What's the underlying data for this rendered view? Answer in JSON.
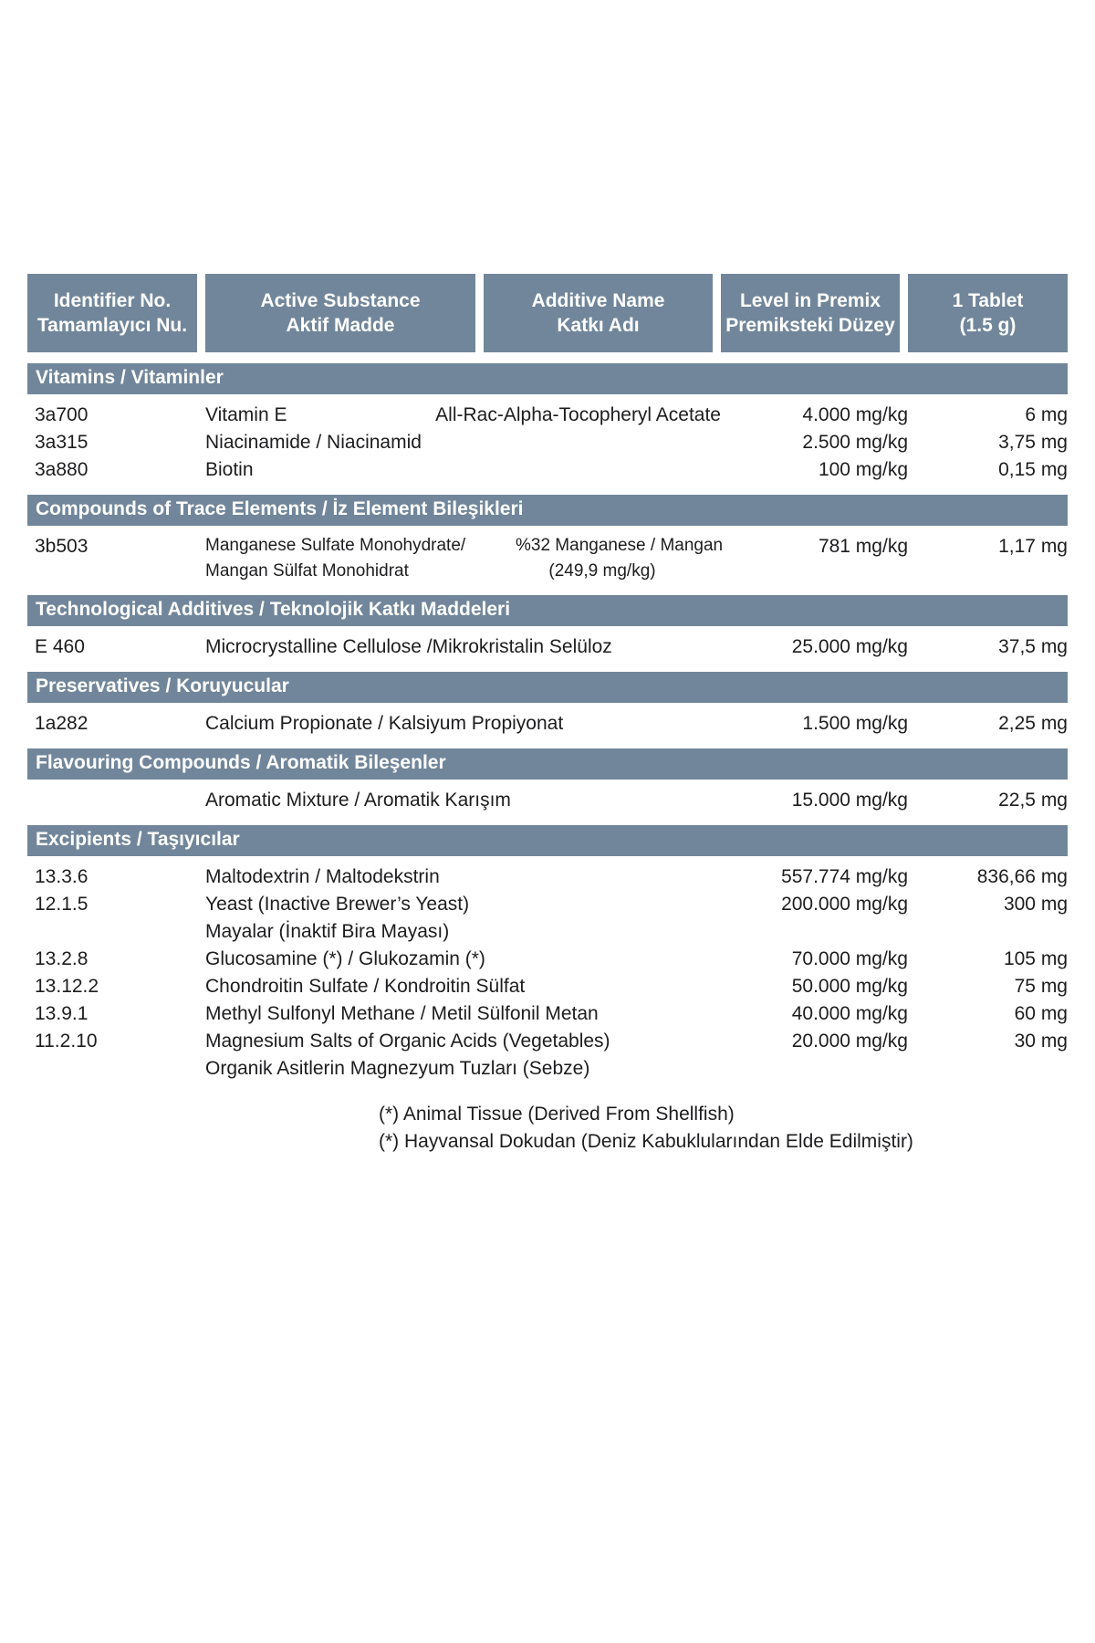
{
  "page": {
    "background": "#FFFFFF",
    "accent_color": "#71869A",
    "header_text_color": "#FFFFFF",
    "body_text_color": "#1D1D1F"
  },
  "header": {
    "columns": [
      {
        "line1": "Identifier No.",
        "line2": "Tamamlayıcı Nu."
      },
      {
        "line1": "Active Substance",
        "line2": "Aktif Madde"
      },
      {
        "line1": "Additive Name",
        "line2": "Katkı Adı"
      },
      {
        "line1": "Level in Premix",
        "line2": "Premiksteki Düzey"
      },
      {
        "line1": "1 Tablet",
        "line2": "(1.5 g)"
      }
    ]
  },
  "sections": [
    {
      "title": "Vitamins / Vitaminler",
      "rows": [
        {
          "id": "3a700",
          "active": "Vitamin E",
          "additive": "All-Rac-Alpha-Tocopheryl Acetate",
          "level": "4.000 mg/kg",
          "tablet": "6 mg"
        },
        {
          "id": "3a315",
          "active": "Niacinamide / Niacinamid",
          "additive": "",
          "level": "2.500 mg/kg",
          "tablet": "3,75 mg"
        },
        {
          "id": "3a880",
          "active": "Biotin",
          "additive": "",
          "level": "100 mg/kg",
          "tablet": "0,15 mg"
        }
      ]
    },
    {
      "title": "Compounds of Trace Elements / İz Element Bileşikleri",
      "rows": [
        {
          "id": "3b503",
          "active": "Manganese Sulfate Monohydrate/",
          "active2": "Mangan Sülfat Monohidrat",
          "additive": "%32 Manganese / Mangan",
          "additive2": "(249,9 mg/kg)",
          "level": "781 mg/kg",
          "tablet": "1,17 mg"
        }
      ]
    },
    {
      "title": "Technological Additives / Teknolojik Katkı Maddeleri",
      "rows": [
        {
          "id": "E 460",
          "active": "Microcrystalline Cellulose /Mikrokristalin Selüloz",
          "additive": "",
          "level": "25.000 mg/kg",
          "tablet": "37,5 mg"
        }
      ]
    },
    {
      "title": "Preservatives / Koruyucular",
      "rows": [
        {
          "id": "1a282",
          "active": "Calcium Propionate / Kalsiyum Propiyonat",
          "additive": "",
          "level": "1.500 mg/kg",
          "tablet": "2,25 mg"
        }
      ]
    },
    {
      "title": "Flavouring Compounds / Aromatik Bileşenler",
      "rows": [
        {
          "id": "",
          "active": "Aromatic Mixture / Aromatik Karışım",
          "additive": "",
          "level": "15.000 mg/kg",
          "tablet": "22,5 mg"
        }
      ]
    },
    {
      "title": "Excipients / Taşıyıcılar",
      "rows": [
        {
          "id": "13.3.6",
          "active": "Maltodextrin / Maltodekstrin",
          "additive": "",
          "level": "557.774 mg/kg",
          "tablet": "836,66 mg"
        },
        {
          "id": "12.1.5",
          "active": "Yeast (Inactive Brewer’s Yeast)",
          "active2": "Mayalar (İnaktif Bira Mayası)",
          "additive": "",
          "level": "200.000 mg/kg",
          "tablet": "300 mg"
        },
        {
          "id": "13.2.8",
          "active": "Glucosamine (*) / Glukozamin (*)",
          "additive": "",
          "level": "70.000 mg/kg",
          "tablet": "105 mg"
        },
        {
          "id": "13.12.2",
          "active": "Chondroitin Sulfate / Kondroitin Sülfat",
          "additive": "",
          "level": "50.000 mg/kg",
          "tablet": "75 mg"
        },
        {
          "id": "13.9.1",
          "active": "Methyl Sulfonyl Methane / Metil Sülfonil Metan",
          "additive": "",
          "level": "40.000 mg/kg",
          "tablet": "60 mg"
        },
        {
          "id": "11.2.10",
          "active": "Magnesium Salts of Organic Acids (Vegetables)",
          "active2": "Organik Asitlerin Magnezyum Tuzları (Sebze)",
          "additive": "",
          "level": "20.000 mg/kg",
          "tablet": "30 mg"
        }
      ]
    }
  ],
  "footnotes": {
    "line1": "(*) Animal Tissue (Derived From Shellfish)",
    "line2": "(*) Hayvansal Dokudan (Deniz Kabuklularından Elde Edilmiştir)"
  }
}
